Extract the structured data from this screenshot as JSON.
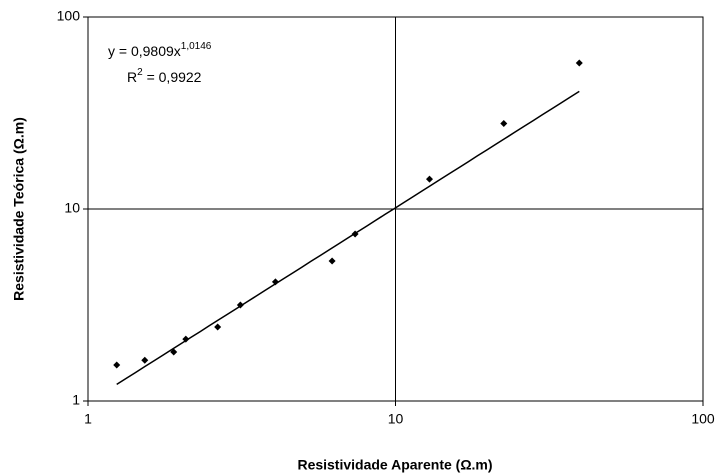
{
  "chart_data": {
    "type": "scatter",
    "xlabel": "Resistividade Aparente (Ω.m)",
    "ylabel": "Resistividade Teórica (Ω.m)",
    "x": [
      1.24,
      1.53,
      1.9,
      2.08,
      2.64,
      3.13,
      4.07,
      6.22,
      7.39,
      12.9,
      22.5,
      39.6
    ],
    "series": [
      {
        "color": "#000000",
        "values": [
          1.54,
          1.63,
          1.8,
          2.1,
          2.43,
          3.16,
          4.17,
          5.36,
          7.41,
          14.3,
          27.9,
          57.6
        ]
      }
    ],
    "xlim": [
      1,
      100
    ],
    "ylim": [
      1,
      100
    ],
    "xticks": [
      1,
      10,
      100
    ],
    "yticks": [
      1,
      10,
      100
    ],
    "xscale": "log",
    "yscale": "log",
    "grid": true,
    "trendline": {
      "equation": "y = 0,9809x",
      "exponent": "1,0146",
      "r_symbol": "R",
      "r_power": "2",
      "r_value": " = 0,9922",
      "color": "#000000"
    }
  }
}
